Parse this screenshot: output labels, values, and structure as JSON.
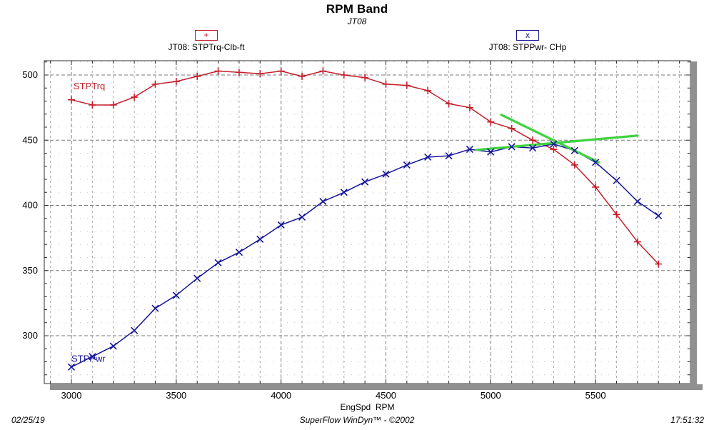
{
  "header": {
    "title": "RPM Band",
    "subtitle": "JT08"
  },
  "legend": {
    "torque": {
      "marker_char": "+",
      "label": "JT08: STPTrq-Clb-ft",
      "color": "#c41e2a"
    },
    "power": {
      "marker_char": "x",
      "label": "JT08: STPPwr- CHp",
      "color": "#16169a"
    }
  },
  "footer": {
    "date": "02/25/19",
    "app": "SuperFlow WinDyn™ - ©2002",
    "time": "17:51:32"
  },
  "chart_data": {
    "type": "line",
    "title": "RPM Band",
    "subtitle": "JT08",
    "xlabel": "EngSpd  RPM",
    "ylabel": "",
    "grid": true,
    "legend_position": "top",
    "xlim": [
      2870,
      5950
    ],
    "ylim": [
      263,
      511
    ],
    "xticks": [
      3000,
      3500,
      4000,
      4500,
      5000,
      5500
    ],
    "yticks": [
      300,
      350,
      400,
      450,
      500
    ],
    "x_minor_step": 100,
    "y_minor_step": 10,
    "x": [
      3000,
      3100,
      3200,
      3300,
      3400,
      3500,
      3600,
      3700,
      3800,
      3900,
      4000,
      4100,
      4200,
      4300,
      4400,
      4500,
      4600,
      4700,
      4800,
      4900,
      5000,
      5100,
      5200,
      5300,
      5400,
      5500,
      5600,
      5700,
      5800
    ],
    "series": [
      {
        "name": "JT08: STPTrq-Clb-ft",
        "inline_label": "STPTrq",
        "inline_label_at": [
          3010,
          489
        ],
        "color": "#c41e2a",
        "marker": "plus",
        "values": [
          481,
          477,
          477,
          483,
          493,
          495,
          499,
          503,
          502,
          501,
          503,
          499,
          503,
          500,
          498,
          493,
          492,
          488,
          478,
          475,
          464,
          459,
          450,
          443,
          431,
          414,
          393,
          372,
          355
        ]
      },
      {
        "name": "JT08: STPPwr- CHp",
        "inline_label": "STPPwr",
        "inline_label_at": [
          3000,
          280
        ],
        "color": "#16169a",
        "marker": "x",
        "values": [
          276,
          284,
          292,
          304,
          321,
          331,
          344,
          356,
          364,
          374,
          385,
          391,
          403,
          410,
          418,
          424,
          431,
          437,
          438,
          443,
          441,
          445,
          444,
          447,
          442,
          433,
          419,
          403,
          392
        ]
      }
    ],
    "overlay_lines": [
      {
        "name": "band-slope-falling",
        "color": "#3fd23f",
        "points": [
          [
            5050,
            469.5
          ],
          [
            5515,
            433
          ]
        ]
      },
      {
        "name": "band-slope-rising",
        "color": "#3fd23f",
        "points": [
          [
            4930,
            442.5
          ],
          [
            5700,
            453.5
          ]
        ]
      }
    ]
  }
}
